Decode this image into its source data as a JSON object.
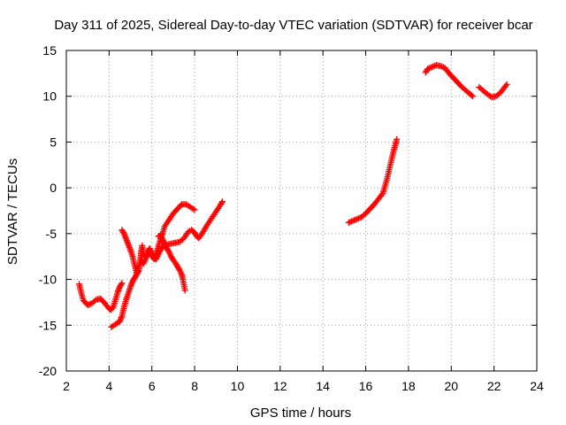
{
  "chart_data": {
    "type": "scatter",
    "title": "Day 311 of 2025, Sidereal Day-to-day VTEC variation (SDTVAR) for receiver bcar",
    "xlabel": "GPS time / hours",
    "ylabel": "SDTVAR / TECUs",
    "xlim": [
      2,
      24
    ],
    "ylim": [
      -20,
      15
    ],
    "xticks": [
      "2",
      "4",
      "6",
      "8",
      "10",
      "12",
      "14",
      "16",
      "18",
      "20",
      "22",
      "24"
    ],
    "yticks": [
      "15",
      "10",
      "5",
      "0",
      "-5",
      "-10",
      "-15",
      "-20"
    ],
    "grid": true,
    "legend": "none",
    "marker_color": "#ff0000",
    "marker": "plus",
    "series": [
      {
        "points": [
          [
            2.6,
            -10.5
          ],
          [
            2.7,
            -11.5
          ],
          [
            2.8,
            -12.3
          ],
          [
            3.0,
            -12.8
          ],
          [
            3.2,
            -12.6
          ],
          [
            3.4,
            -12.2
          ],
          [
            3.6,
            -12.1
          ],
          [
            3.8,
            -12.6
          ],
          [
            4.0,
            -13.2
          ],
          [
            4.1,
            -13.3
          ],
          [
            4.2,
            -13.0
          ],
          [
            4.3,
            -12.2
          ],
          [
            4.4,
            -11.4
          ],
          [
            4.5,
            -10.8
          ],
          [
            4.6,
            -10.4
          ]
        ]
      },
      {
        "points": [
          [
            4.1,
            -15.2
          ],
          [
            4.3,
            -14.9
          ],
          [
            4.5,
            -14.6
          ],
          [
            4.6,
            -14.0
          ],
          [
            4.7,
            -13.0
          ],
          [
            4.8,
            -12.2
          ],
          [
            4.9,
            -11.5
          ],
          [
            5.0,
            -10.8
          ],
          [
            5.1,
            -10.2
          ],
          [
            5.2,
            -9.8
          ],
          [
            5.3,
            -9.4
          ],
          [
            5.4,
            -9.0
          ],
          [
            5.45,
            -8.0
          ],
          [
            5.5,
            -7.0
          ],
          [
            5.55,
            -6.3
          ],
          [
            5.6,
            -7.2
          ],
          [
            5.7,
            -7.6
          ],
          [
            5.8,
            -7.4
          ],
          [
            5.9,
            -7.0
          ],
          [
            6.0,
            -7.4
          ],
          [
            6.1,
            -7.8
          ],
          [
            6.2,
            -7.2
          ],
          [
            6.3,
            -6.4
          ],
          [
            6.4,
            -5.6
          ],
          [
            6.5,
            -5.0
          ],
          [
            6.6,
            -4.2
          ],
          [
            6.8,
            -3.5
          ],
          [
            7.0,
            -2.8
          ],
          [
            7.2,
            -2.3
          ],
          [
            7.4,
            -1.8
          ],
          [
            7.6,
            -1.8
          ],
          [
            7.8,
            -2.1
          ],
          [
            8.0,
            -2.4
          ]
        ]
      },
      {
        "points": [
          [
            4.6,
            -4.6
          ],
          [
            4.7,
            -5.0
          ],
          [
            4.8,
            -5.6
          ],
          [
            4.9,
            -6.2
          ],
          [
            5.0,
            -6.8
          ],
          [
            5.1,
            -7.5
          ],
          [
            5.2,
            -8.5
          ],
          [
            5.3,
            -9.4
          ],
          [
            5.4,
            -8.6
          ],
          [
            5.5,
            -7.8
          ],
          [
            5.6,
            -8.3
          ],
          [
            5.7,
            -7.8
          ],
          [
            5.8,
            -7.0
          ],
          [
            5.9,
            -6.6
          ],
          [
            6.0,
            -7.2
          ],
          [
            6.1,
            -7.6
          ],
          [
            6.2,
            -7.8
          ],
          [
            6.3,
            -7.3
          ],
          [
            6.4,
            -6.8
          ],
          [
            6.5,
            -6.4
          ],
          [
            6.7,
            -6.2
          ],
          [
            6.9,
            -6.1
          ],
          [
            7.1,
            -6.0
          ],
          [
            7.3,
            -5.9
          ],
          [
            7.5,
            -5.5
          ],
          [
            7.7,
            -4.8
          ],
          [
            7.85,
            -4.6
          ],
          [
            8.0,
            -4.9
          ],
          [
            8.1,
            -5.3
          ],
          [
            8.2,
            -5.5
          ],
          [
            8.4,
            -4.8
          ],
          [
            8.6,
            -4.0
          ],
          [
            8.8,
            -3.3
          ],
          [
            9.0,
            -2.6
          ],
          [
            9.2,
            -1.9
          ],
          [
            9.3,
            -1.5
          ]
        ]
      },
      {
        "points": [
          [
            6.3,
            -5.3
          ],
          [
            6.4,
            -5.2
          ],
          [
            6.5,
            -5.6
          ],
          [
            6.6,
            -6.2
          ],
          [
            6.7,
            -6.6
          ],
          [
            6.8,
            -7.0
          ],
          [
            6.9,
            -7.5
          ],
          [
            7.0,
            -7.9
          ],
          [
            7.1,
            -8.2
          ],
          [
            7.2,
            -8.6
          ],
          [
            7.3,
            -9.0
          ],
          [
            7.4,
            -9.5
          ],
          [
            7.45,
            -10.0
          ],
          [
            7.5,
            -10.6
          ],
          [
            7.55,
            -11.2
          ]
        ]
      },
      {
        "points": [
          [
            15.2,
            -3.8
          ],
          [
            15.4,
            -3.6
          ],
          [
            15.6,
            -3.4
          ],
          [
            15.8,
            -3.2
          ],
          [
            16.0,
            -2.8
          ],
          [
            16.2,
            -2.3
          ],
          [
            16.4,
            -1.8
          ],
          [
            16.6,
            -1.2
          ],
          [
            16.8,
            -0.6
          ],
          [
            16.9,
            0.2
          ],
          [
            17.0,
            1.0
          ],
          [
            17.1,
            2.0
          ],
          [
            17.2,
            3.0
          ],
          [
            17.3,
            4.0
          ],
          [
            17.4,
            4.8
          ],
          [
            17.45,
            5.3
          ]
        ]
      },
      {
        "points": [
          [
            18.8,
            12.6
          ],
          [
            18.9,
            13.0
          ],
          [
            19.1,
            13.2
          ],
          [
            19.3,
            13.4
          ],
          [
            19.5,
            13.3
          ],
          [
            19.7,
            13.1
          ],
          [
            19.9,
            12.5
          ],
          [
            20.1,
            12.0
          ],
          [
            20.3,
            11.5
          ],
          [
            20.5,
            11.0
          ],
          [
            20.7,
            10.6
          ],
          [
            20.9,
            10.2
          ],
          [
            21.0,
            10.0
          ]
        ]
      },
      {
        "points": [
          [
            21.3,
            11.0
          ],
          [
            21.5,
            10.6
          ],
          [
            21.7,
            10.2
          ],
          [
            21.9,
            9.9
          ],
          [
            22.1,
            10.0
          ],
          [
            22.3,
            10.4
          ],
          [
            22.5,
            11.0
          ],
          [
            22.6,
            11.3
          ]
        ]
      }
    ]
  }
}
